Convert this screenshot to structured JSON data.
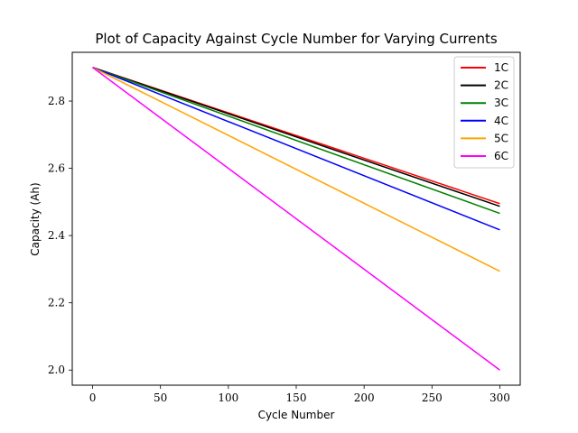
{
  "chart_data": {
    "type": "line",
    "title": "Plot of Capacity Against Cycle Number for Varying Currents",
    "xlabel": "Cycle Number",
    "ylabel": "Capacity (Ah)",
    "xlim": [
      -15,
      315
    ],
    "ylim": [
      1.955,
      2.945
    ],
    "xticks": [
      0,
      50,
      100,
      150,
      200,
      250,
      300
    ],
    "yticks": [
      2.0,
      2.2,
      2.4,
      2.6,
      2.8
    ],
    "xtick_labels": [
      "0",
      "50",
      "100",
      "150",
      "200",
      "250",
      "300"
    ],
    "ytick_labels": [
      "2.0",
      "2.2",
      "2.4",
      "2.6",
      "2.8"
    ],
    "grid": false,
    "legend_position": "top-right",
    "series": [
      {
        "name": "1C",
        "color": "#ff0000",
        "x": [
          0,
          300
        ],
        "values": [
          2.9,
          2.495
        ]
      },
      {
        "name": "2C",
        "color": "#000000",
        "x": [
          0,
          300
        ],
        "values": [
          2.9,
          2.487
        ]
      },
      {
        "name": "3C",
        "color": "#008000",
        "x": [
          0,
          300
        ],
        "values": [
          2.9,
          2.466
        ]
      },
      {
        "name": "4C",
        "color": "#0000ff",
        "x": [
          0,
          300
        ],
        "values": [
          2.9,
          2.417
        ]
      },
      {
        "name": "5C",
        "color": "#ffa500",
        "x": [
          0,
          300
        ],
        "values": [
          2.9,
          2.294
        ]
      },
      {
        "name": "6C",
        "color": "#ff00ff",
        "x": [
          0,
          300
        ],
        "values": [
          2.9,
          2.0
        ]
      }
    ]
  }
}
